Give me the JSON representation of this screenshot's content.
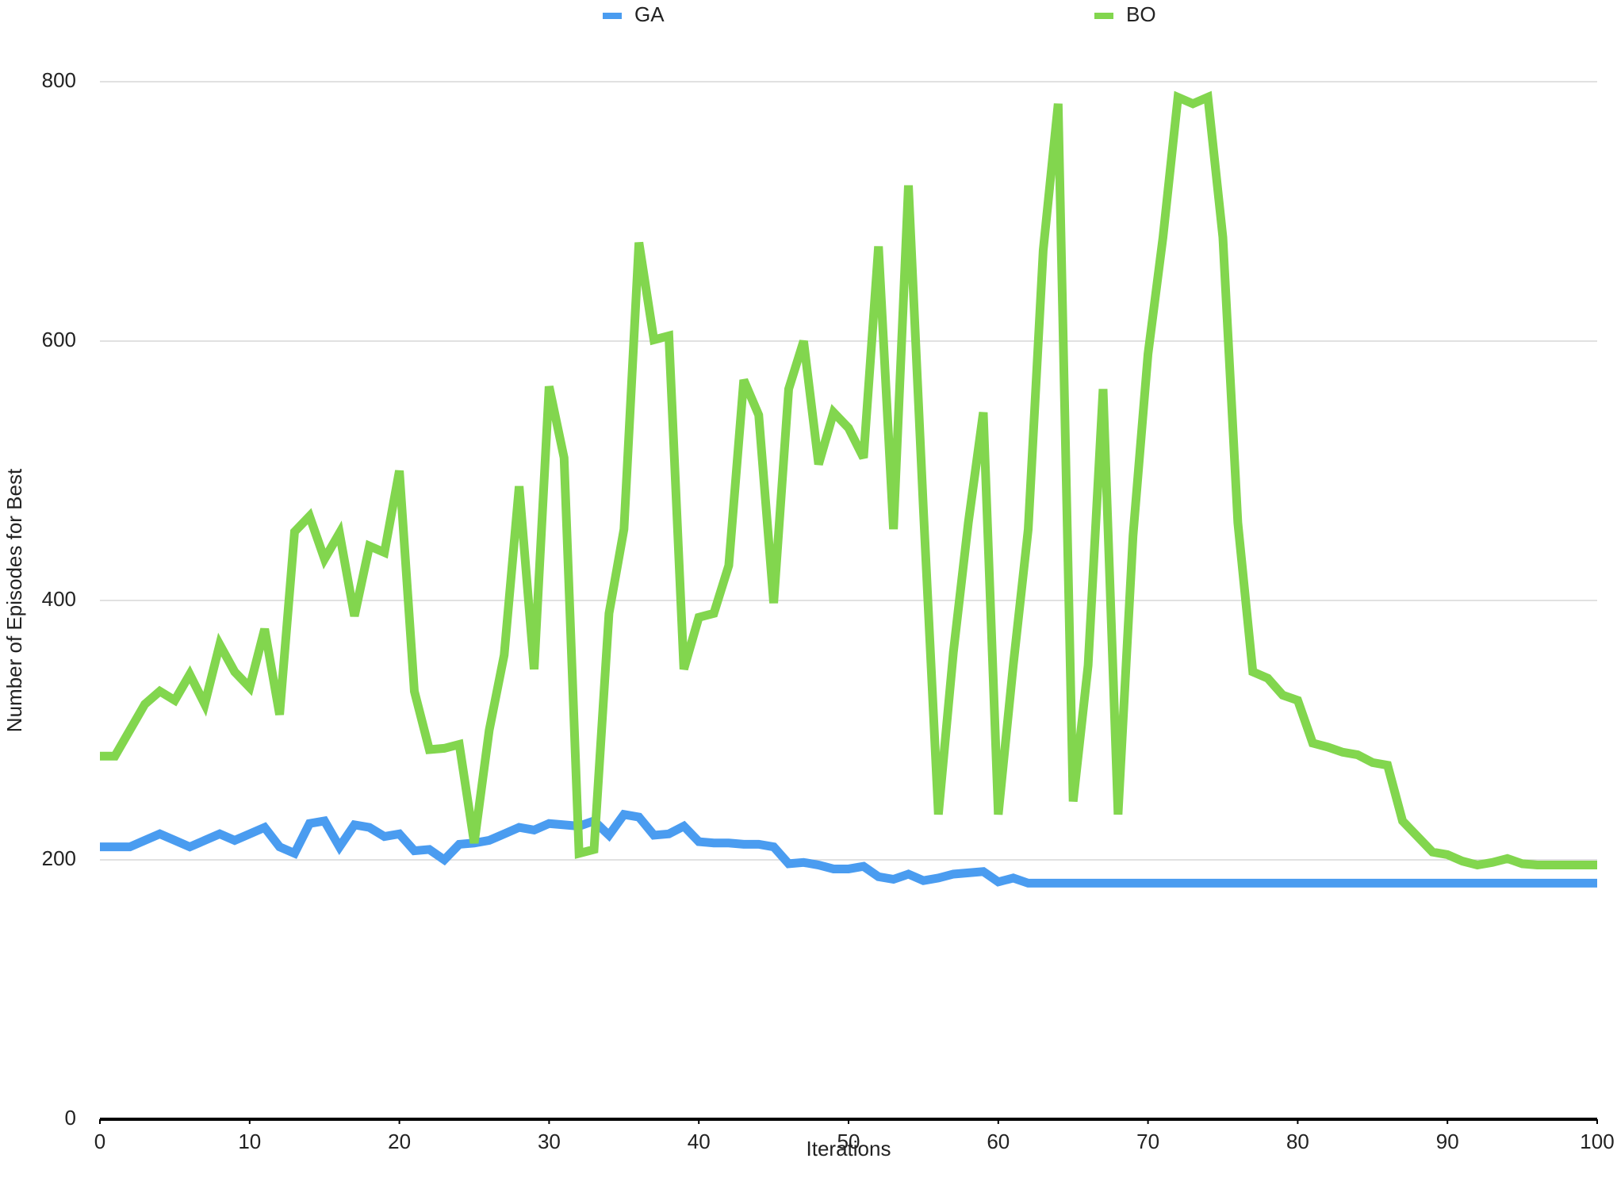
{
  "chart_data": {
    "type": "line",
    "x": [
      0,
      1,
      2,
      3,
      4,
      5,
      6,
      7,
      8,
      9,
      10,
      11,
      12,
      13,
      14,
      15,
      16,
      17,
      18,
      19,
      20,
      21,
      22,
      23,
      24,
      25,
      26,
      27,
      28,
      29,
      30,
      31,
      32,
      33,
      34,
      35,
      36,
      37,
      38,
      39,
      40,
      41,
      42,
      43,
      44,
      45,
      46,
      47,
      48,
      49,
      50,
      51,
      52,
      53,
      54,
      55,
      56,
      57,
      58,
      59,
      60,
      61,
      62,
      63,
      64,
      65,
      66,
      67,
      68,
      69,
      70,
      71,
      72,
      73,
      74,
      75,
      76,
      77,
      78,
      79,
      80,
      81,
      82,
      83,
      84,
      85,
      86,
      87,
      88,
      89,
      90,
      91,
      92,
      93,
      94,
      95,
      96,
      97,
      98,
      99,
      100
    ],
    "series": [
      {
        "name": "GA",
        "color": "#4a9cf0",
        "values": [
          210,
          210,
          210,
          215,
          220,
          215,
          210,
          215,
          220,
          215,
          220,
          225,
          210,
          205,
          228,
          230,
          210,
          227,
          225,
          218,
          220,
          207,
          208,
          200,
          212,
          213,
          215,
          220,
          225,
          223,
          228,
          227,
          226,
          230,
          219,
          235,
          233,
          219,
          220,
          226,
          214,
          213,
          213,
          212,
          212,
          210,
          197,
          198,
          196,
          193,
          193,
          195,
          187,
          185,
          189,
          184,
          186,
          189,
          190,
          191,
          183,
          186,
          182,
          182,
          182,
          182,
          182,
          182,
          182,
          182,
          182,
          182,
          182,
          182,
          182,
          182,
          182,
          182,
          182,
          182,
          182,
          182,
          182,
          182,
          182,
          182,
          182,
          182,
          182,
          182,
          182,
          182,
          182,
          182,
          182,
          182,
          182,
          182,
          182,
          182,
          182
        ]
      },
      {
        "name": "BO",
        "color": "#82d64e",
        "values": [
          280,
          280,
          300,
          320,
          330,
          323,
          343,
          320,
          366,
          345,
          333,
          378,
          312,
          453,
          465,
          432,
          452,
          388,
          442,
          437,
          500,
          330,
          285,
          286,
          289,
          213,
          300,
          358,
          488,
          347,
          565,
          510,
          205,
          208,
          390,
          455,
          676,
          601,
          604,
          347,
          387,
          390,
          427,
          570,
          543,
          398,
          563,
          600,
          505,
          545,
          533,
          510,
          673,
          455,
          720,
          470,
          235,
          360,
          460,
          545,
          235,
          350,
          455,
          670,
          783,
          245,
          350,
          563,
          235,
          450,
          590,
          680,
          788,
          783,
          788,
          680,
          460,
          345,
          340,
          327,
          323,
          290,
          287,
          283,
          281,
          275,
          273,
          230,
          218,
          206,
          204,
          199,
          196,
          198,
          201,
          197,
          196,
          196,
          196,
          196,
          196
        ]
      }
    ],
    "xlabel": "Iterations",
    "ylabel": "Number of Episodes for Best",
    "xlim": [
      0,
      100
    ],
    "xticks": [
      0,
      10,
      20,
      30,
      40,
      50,
      60,
      70,
      80,
      90,
      100
    ],
    "ylim": [
      0,
      800
    ],
    "yticks": [
      0,
      200,
      400,
      600,
      800
    ],
    "grid": true,
    "legend": "top"
  }
}
